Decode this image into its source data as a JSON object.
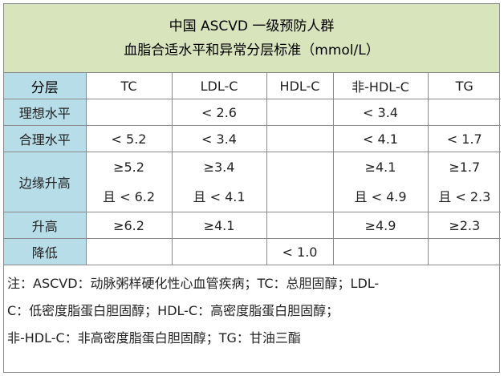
{
  "title": {
    "line1": "中国 ASCVD 一级预防人群",
    "line2": "血脂合适水平和异常分层标准（mmol/L）"
  },
  "header": {
    "label": "分层",
    "columns": [
      "TC",
      "LDL-C",
      "HDL-C",
      "非-HDL-C",
      "TG"
    ]
  },
  "rows": [
    {
      "label": "理想水平",
      "cells": [
        "",
        "< 2.6",
        "",
        "< 3.4",
        ""
      ]
    },
    {
      "label": "合理水平",
      "cells": [
        "< 5.2",
        "< 3.4",
        "",
        "< 4.1",
        "< 1.7"
      ]
    },
    {
      "label": "边缘升高",
      "cells_top": [
        "≥5.2",
        "≥3.4",
        "",
        "≥4.1",
        "≥1.7"
      ],
      "cells_bottom": [
        "且 < 6.2",
        "且 < 4.1",
        "",
        "且 < 4.9",
        "且 < 2.3"
      ]
    },
    {
      "label": "升高",
      "cells": [
        "≥6.2",
        "≥4.1",
        "",
        "≥4.9",
        "≥2.3"
      ]
    },
    {
      "label": "降低",
      "cells": [
        "",
        "",
        "< 1.0",
        "",
        ""
      ]
    }
  ],
  "notes": {
    "line1": "注：ASCVD：动脉粥样硬化性心血管疾病；TC：总胆固醇；LDL-",
    "line2": "C：低密度脂蛋白胆固醇；HDL-C：高密度脂蛋白胆固醇；",
    "line3": "非-HDL-C：非高密度脂蛋白胆固醇；TG：甘油三酯"
  },
  "colors": {
    "title_bg": "#d8e4bc",
    "label_bg": "#b7dde8",
    "border": "#8a8a8a"
  }
}
